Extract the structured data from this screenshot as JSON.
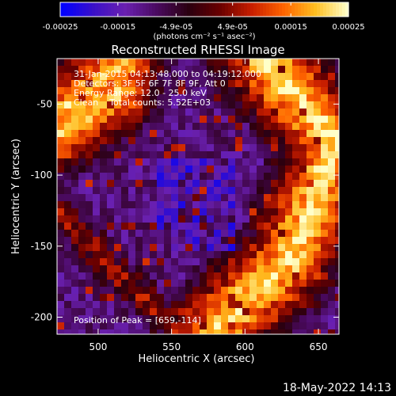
{
  "chart_data": {
    "type": "heatmap",
    "title": "Reconstructed RHESSI Image",
    "xlabel": "Heliocentric X (arcsec)",
    "ylabel": "Heliocentric Y (arcsec)",
    "xlim": [
      472,
      664
    ],
    "ylim": [
      -212,
      -18
    ],
    "x_ticks": [
      "500",
      "550",
      "600",
      "650"
    ],
    "y_ticks": [
      "-50",
      "-100",
      "-150",
      "-200"
    ],
    "colorbar": {
      "min": -0.00025,
      "max": 0.00025,
      "ticks": [
        "-0.00025",
        "-0.00015",
        "-4.9e-05",
        "4.9e-05",
        "0.00015",
        "0.00025"
      ],
      "unit_label": "(photons cm⁻² s⁻¹ asec⁻²)"
    },
    "colors": {
      "colormap": [
        "#0000ff",
        "#3a10c8",
        "#6a20b0",
        "#4a0a60",
        "#2a0010",
        "#6a0000",
        "#c81e00",
        "#ff6400",
        "#ffbe20",
        "#ffffc8"
      ],
      "background": "#000000",
      "text": "#ffffff"
    },
    "annotations": [
      "31-Jan-2015 04:13:48.000 to 04:19:12.000",
      "Detectors: 3F 5F 6F 7F 8F 9F, Att 0",
      "Energy Range: 12.0 - 25.0 keV",
      "Clean    Total counts: 5.52E+03"
    ],
    "peak_label": "Position of Peak = [659,-114]",
    "peak": {
      "x": 659,
      "y": -114
    },
    "footer_date": "18-May-2022 14:13"
  }
}
